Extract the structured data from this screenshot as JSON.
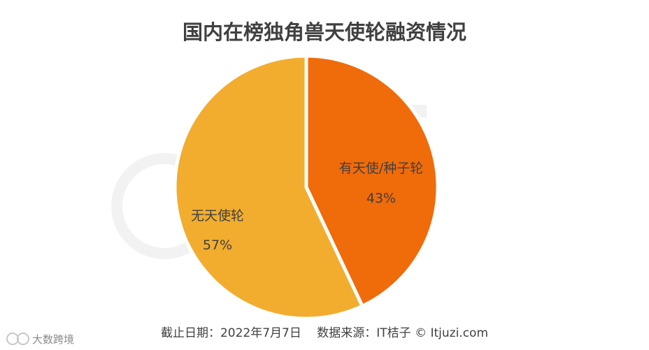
{
  "chart_data": {
    "type": "pie",
    "title": "国内在榜独角兽天使轮融资情况",
    "slices": [
      {
        "label": "有天使/种子轮",
        "value": 43,
        "value_label": "43%",
        "color": "#F06B0A"
      },
      {
        "label": "无天使轮",
        "value": 57,
        "value_label": "57%",
        "color": "#F2AD2E"
      }
    ]
  },
  "footer": {
    "source": "截止日期：2022年7月7日　 数据来源：IT桔子 © Itjuzi.com"
  },
  "watermark": {
    "text": "大数跨境"
  }
}
